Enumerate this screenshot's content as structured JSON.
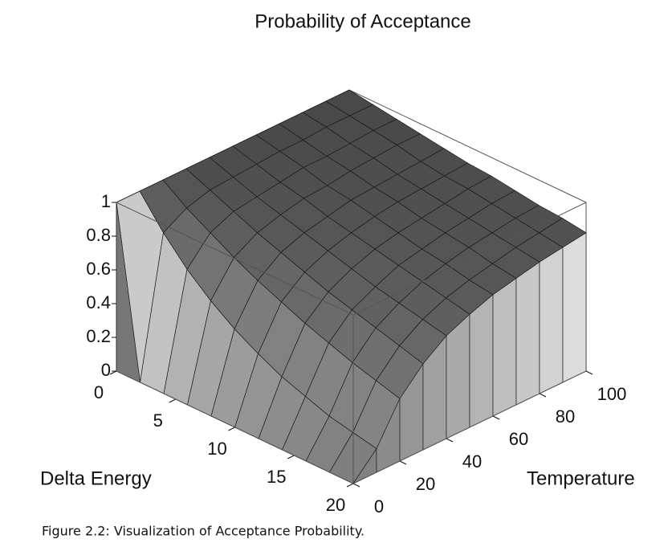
{
  "chart_data": {
    "type": "surface",
    "title": "Probability of Acceptance",
    "x_label": "Delta Energy",
    "y_label": "Temperature",
    "x": [
      0,
      2,
      4,
      6,
      8,
      10,
      12,
      14,
      16,
      18,
      20
    ],
    "y": [
      0,
      10,
      20,
      30,
      40,
      50,
      60,
      70,
      80,
      90,
      100
    ],
    "z": [
      [
        1,
        1,
        1,
        1,
        1,
        1,
        1,
        1,
        1,
        1,
        1
      ],
      [
        0,
        0.82,
        0.9,
        0.94,
        0.95,
        0.96,
        0.97,
        0.97,
        0.98,
        0.98,
        0.98
      ],
      [
        0,
        0.67,
        0.82,
        0.88,
        0.9,
        0.92,
        0.94,
        0.94,
        0.95,
        0.96,
        0.96
      ],
      [
        0,
        0.55,
        0.74,
        0.82,
        0.86,
        0.89,
        0.9,
        0.92,
        0.93,
        0.94,
        0.94
      ],
      [
        0,
        0.45,
        0.67,
        0.77,
        0.82,
        0.85,
        0.88,
        0.89,
        0.9,
        0.91,
        0.92
      ],
      [
        0,
        0.37,
        0.61,
        0.72,
        0.78,
        0.82,
        0.85,
        0.87,
        0.88,
        0.89,
        0.9
      ],
      [
        0,
        0.3,
        0.55,
        0.67,
        0.74,
        0.79,
        0.82,
        0.84,
        0.86,
        0.88,
        0.89
      ],
      [
        0,
        0.25,
        0.5,
        0.63,
        0.7,
        0.76,
        0.79,
        0.82,
        0.84,
        0.86,
        0.87
      ],
      [
        0,
        0.2,
        0.45,
        0.59,
        0.67,
        0.73,
        0.77,
        0.8,
        0.82,
        0.84,
        0.85
      ],
      [
        0,
        0.17,
        0.41,
        0.55,
        0.64,
        0.7,
        0.74,
        0.77,
        0.8,
        0.82,
        0.84
      ],
      [
        0,
        0.14,
        0.37,
        0.51,
        0.61,
        0.67,
        0.72,
        0.75,
        0.78,
        0.8,
        0.82
      ]
    ],
    "xlim": [
      0,
      20
    ],
    "ylim": [
      0,
      100
    ],
    "zlim": [
      0,
      1
    ],
    "xticks": [
      0,
      5,
      10,
      15,
      20
    ],
    "yticks": [
      0,
      20,
      40,
      60,
      80,
      100
    ],
    "zticks": [
      0,
      0.2,
      0.4,
      0.6,
      0.8,
      1
    ]
  },
  "caption": "Figure 2.2: Visualization of Acceptance Probability."
}
